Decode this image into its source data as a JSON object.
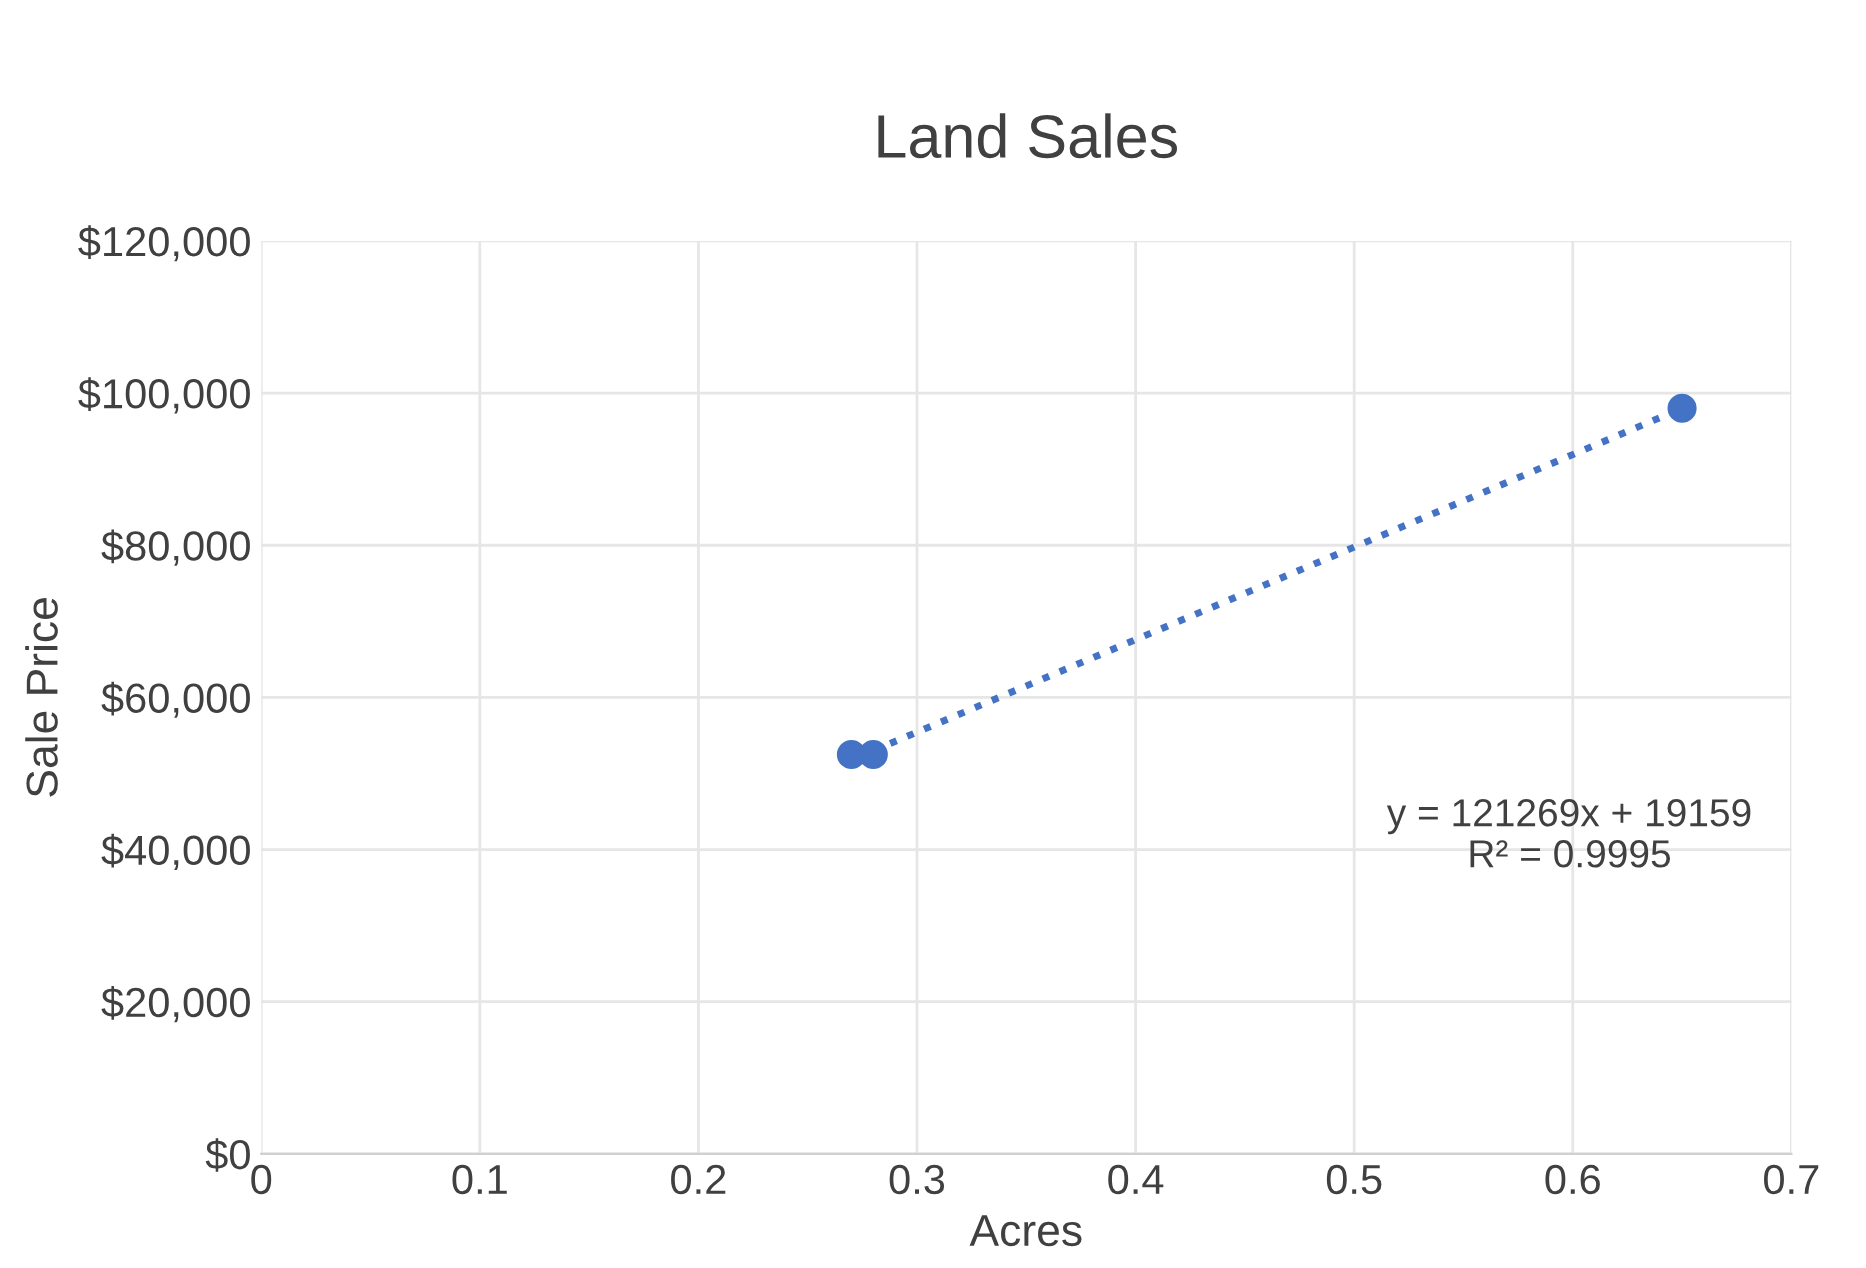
{
  "chart_data": {
    "type": "scatter",
    "title": "Land Sales",
    "xlabel": "Acres",
    "ylabel": "Sale Price",
    "series": [
      {
        "color": "#4472c4",
        "marker": "circle",
        "x": [
          0.27,
          0.28,
          0.65
        ],
        "values": [
          52500,
          52500,
          98000
        ]
      },
      {
        "type": "line",
        "color": "#4472c4",
        "line_style": "dotted",
        "x": [
          0.28,
          0.65
        ],
        "values": [
          53000,
          98000
        ]
      }
    ],
    "annotations": [
      "y = 121269x + 19159",
      "R² = 0.9995"
    ],
    "xlim": [
      0,
      0.7
    ],
    "xticks": [
      0,
      0.1,
      0.2,
      0.3,
      0.4,
      0.5,
      0.6,
      0.7
    ],
    "ylim": [
      0,
      120000
    ],
    "yticks": [
      {
        "value": 0,
        "label": "$0"
      },
      {
        "value": 20000,
        "label": "$20,000"
      },
      {
        "value": 40000,
        "label": "$40,000"
      },
      {
        "value": 60000,
        "label": "$60,000"
      },
      {
        "value": 80000,
        "label": "$80,000"
      },
      {
        "value": 100000,
        "label": "$100,000"
      },
      {
        "value": 120000,
        "label": "$120,000"
      }
    ],
    "grid": true,
    "legend": false
  }
}
